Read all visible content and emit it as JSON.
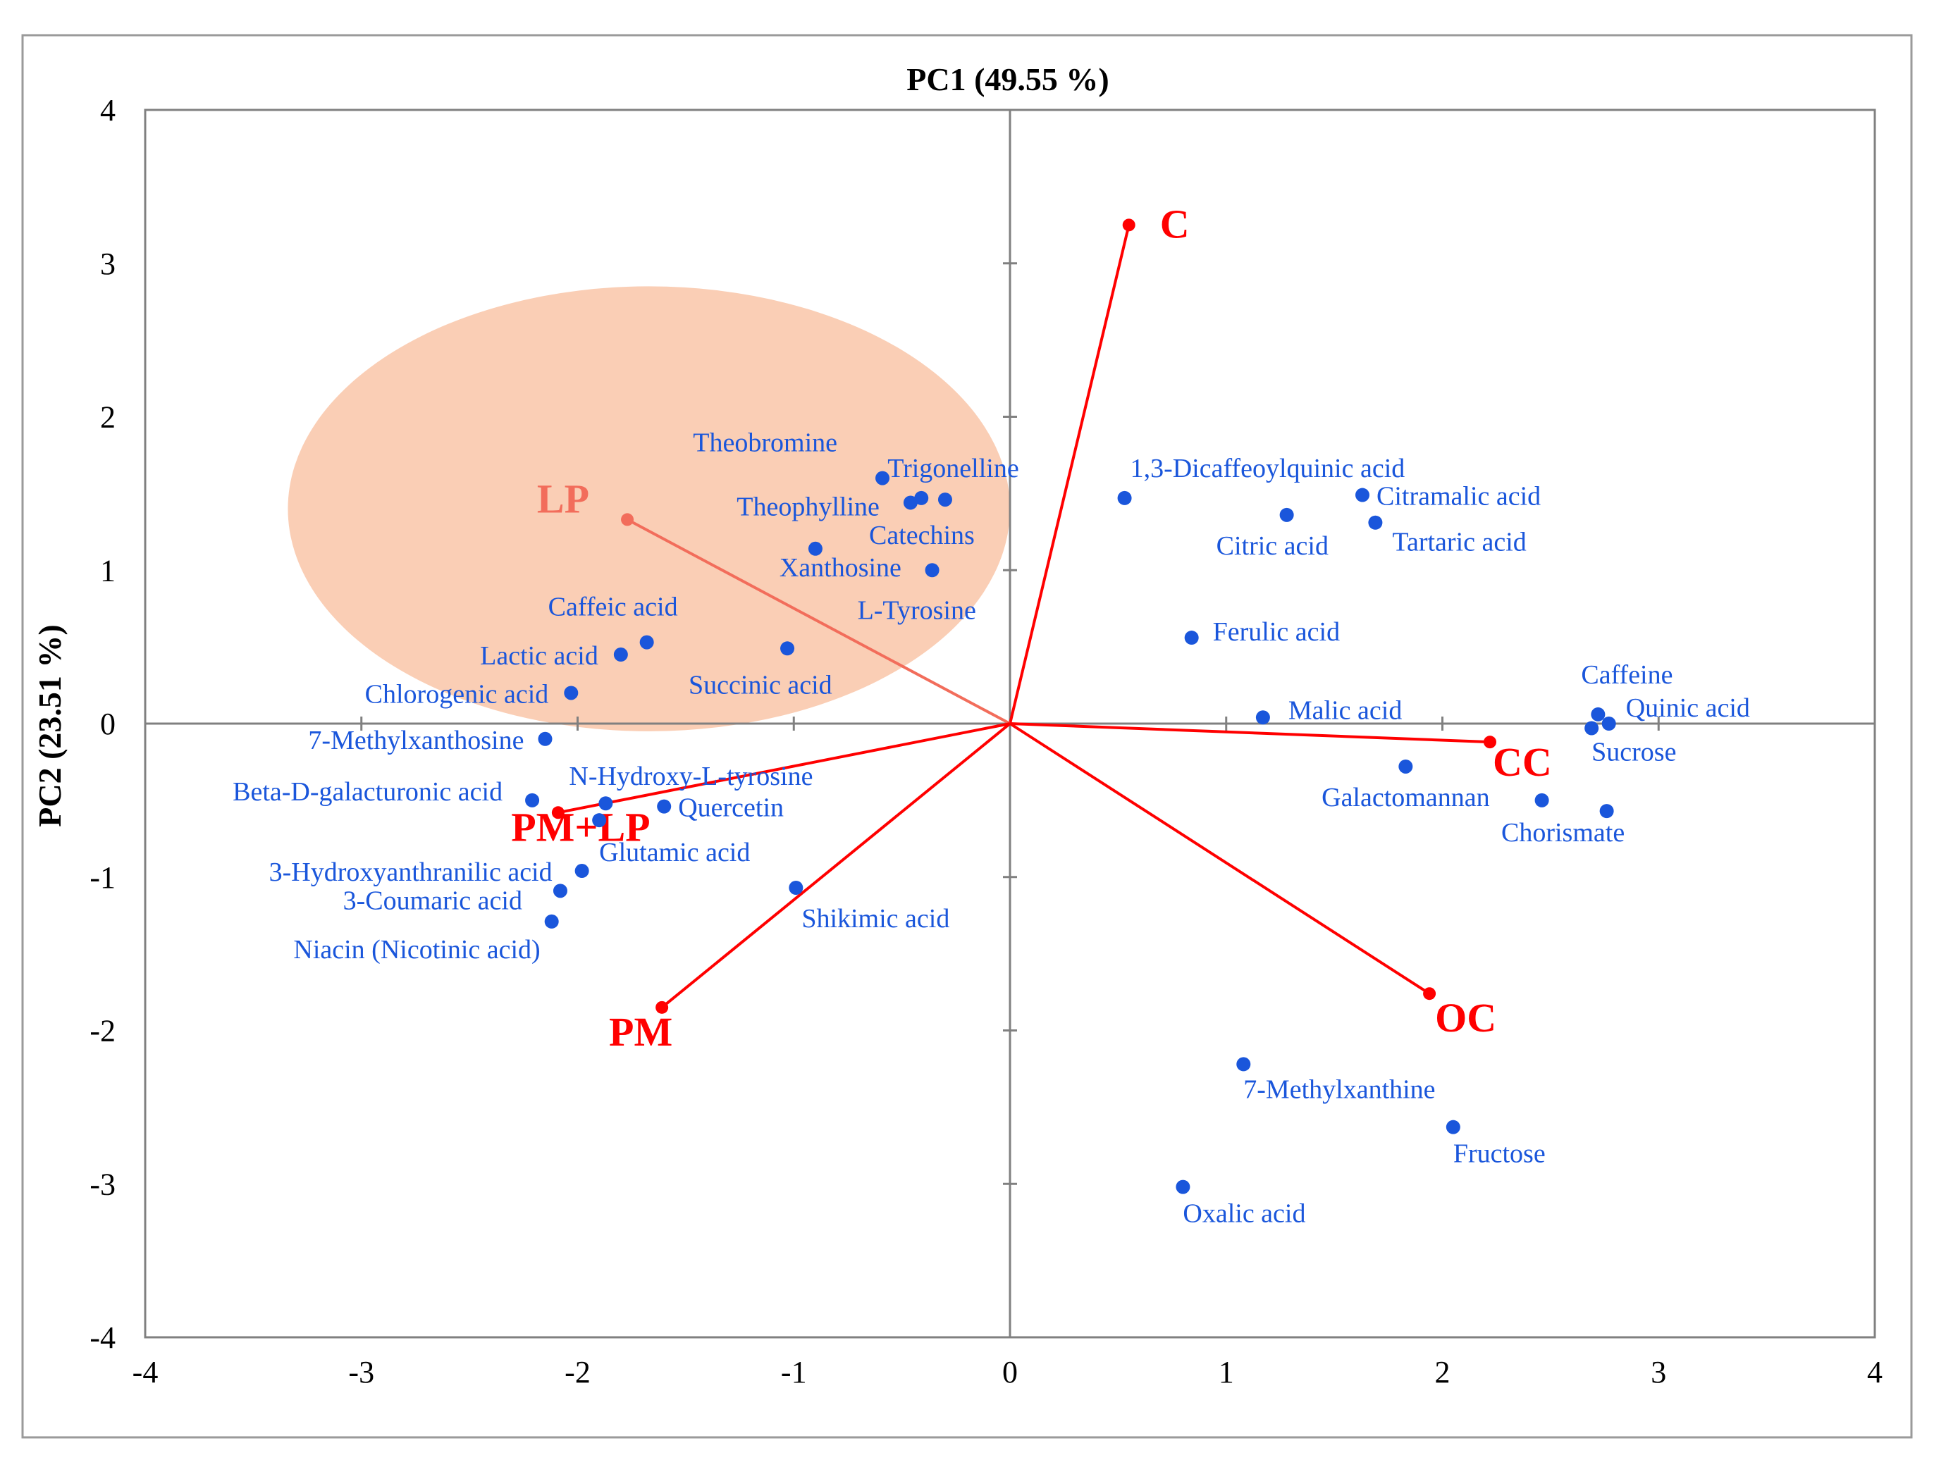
{
  "chart_data": {
    "type": "scatter",
    "subtype": "pca-biplot",
    "title": "PC1 (49.55 %)",
    "xlabel": "",
    "ylabel": "PC2 (23.51 %)",
    "xlim": [
      -4,
      4
    ],
    "ylim": [
      -4,
      4
    ],
    "xticks": [
      "-4",
      "-3",
      "-2",
      "-1",
      "0",
      "1",
      "2",
      "3",
      "4"
    ],
    "yticks": [
      "4",
      "3",
      "2",
      "1",
      "0",
      "-1",
      "-2",
      "-3",
      "-4"
    ],
    "grid": false,
    "colors": {
      "points": "#1a56db",
      "point_labels": "#1a56db",
      "vectors": "#ff0000",
      "highlight_fill": "#f9c6a8",
      "highlight_vector": "#f26d5b",
      "highlight_label": "#f26d5b",
      "axis": "#808080"
    },
    "highlight_region": {
      "shape": "ellipse",
      "center": [
        -1.67,
        1.4
      ],
      "radius_pc1": 1.67,
      "radius_pc2": 1.45
    },
    "loadings": [
      {
        "label": "C",
        "x": 0.55,
        "y": 3.25
      },
      {
        "label": "LP",
        "x": -1.77,
        "y": 1.33,
        "highlighted": true
      },
      {
        "label": "CC",
        "x": 2.22,
        "y": -0.12
      },
      {
        "label": "PM+LP",
        "x": -2.09,
        "y": -0.58
      },
      {
        "label": "PM",
        "x": -1.61,
        "y": -1.85
      },
      {
        "label": "OC",
        "x": 1.94,
        "y": -1.76
      }
    ],
    "points": [
      {
        "label": "Theobromine",
        "x": -0.59,
        "y": 1.6
      },
      {
        "label": "Trigonelline",
        "x": -0.41,
        "y": 1.47
      },
      {
        "label": "Theophylline",
        "x": -0.46,
        "y": 1.44
      },
      {
        "label": "Catechins",
        "x": -0.3,
        "y": 1.46
      },
      {
        "label": "Xanthosine",
        "x": -0.9,
        "y": 1.14
      },
      {
        "label": "L-Tyrosine",
        "x": -0.36,
        "y": 1.0
      },
      {
        "label": "Caffeic acid",
        "x": -1.68,
        "y": 0.53
      },
      {
        "label": "Lactic acid",
        "x": -1.8,
        "y": 0.45
      },
      {
        "label": "Chlorogenic acid",
        "x": -2.03,
        "y": 0.2
      },
      {
        "label": "Succinic acid",
        "x": -1.03,
        "y": 0.49
      },
      {
        "label": "7-Methylxanthosine",
        "x": -2.15,
        "y": -0.1
      },
      {
        "label": "N-Hydroxy-L-tyrosine",
        "x": -1.87,
        "y": -0.52
      },
      {
        "label": "Beta-D-galacturonic acid",
        "x": -2.21,
        "y": -0.5
      },
      {
        "label": "Quercetin",
        "x": -1.6,
        "y": -0.54
      },
      {
        "label": "Glutamic acid",
        "x": -1.9,
        "y": -0.63
      },
      {
        "label": "3-Hydroxyanthranilic acid",
        "x": -1.98,
        "y": -0.96
      },
      {
        "label": "3-Coumaric acid",
        "x": -2.08,
        "y": -1.09
      },
      {
        "label": "Niacin (Nicotinic acid)",
        "x": -2.12,
        "y": -1.29
      },
      {
        "label": "Shikimic acid",
        "x": -0.99,
        "y": -1.07
      },
      {
        "label": "1,3-Dicaffeoylquinic acid",
        "x": 0.53,
        "y": 1.47
      },
      {
        "label": "Citramalic acid",
        "x": 1.63,
        "y": 1.49
      },
      {
        "label": "Citric acid",
        "x": 1.28,
        "y": 1.36
      },
      {
        "label": "Tartaric acid",
        "x": 1.69,
        "y": 1.31
      },
      {
        "label": "Ferulic acid",
        "x": 0.84,
        "y": 0.56
      },
      {
        "label": "Malic acid",
        "x": 1.17,
        "y": 0.04
      },
      {
        "label": "Caffeine",
        "x": 2.72,
        "y": 0.06
      },
      {
        "label": "Quinic acid",
        "x": 2.77,
        "y": 0.0
      },
      {
        "label": "Sucrose",
        "x": 2.69,
        "y": -0.03
      },
      {
        "label": "Galactomannan",
        "x": 1.83,
        "y": -0.28
      },
      {
        "label": "Chorismate",
        "x": 2.46,
        "y": -0.5
      },
      {
        "label": "Chorismate-point-2",
        "x": 2.76,
        "y": -0.57,
        "unlabeled": true
      },
      {
        "label": "7-Methylxanthine",
        "x": 1.08,
        "y": -2.22
      },
      {
        "label": "Fructose",
        "x": 2.05,
        "y": -2.63
      },
      {
        "label": "Oxalic acid",
        "x": 0.8,
        "y": -3.02
      }
    ]
  }
}
